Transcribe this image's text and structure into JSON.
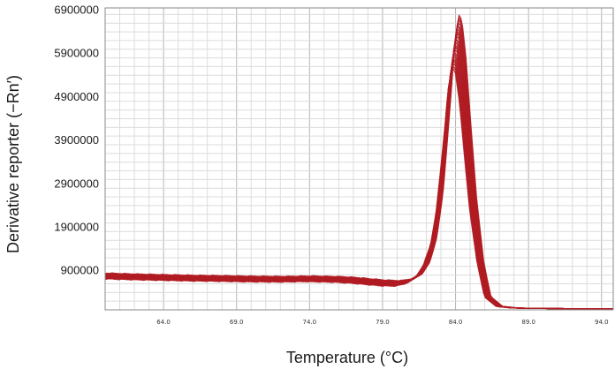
{
  "chart_data": {
    "type": "line",
    "title": "",
    "xlabel": "Temperature (°C)",
    "ylabel": "Derivative reporter (−Rn′)",
    "xlim": [
      60.0,
      94.8
    ],
    "ylim": [
      0,
      6950000
    ],
    "x_ticks": [
      "64.0",
      "69.0",
      "74.0",
      "79.0",
      "84.0",
      "89.0",
      "94.0"
    ],
    "y_ticks": [
      "900000",
      "1900000",
      "2900000",
      "3900000",
      "4900000",
      "5900000",
      "6900000"
    ],
    "grid": true,
    "legend": "none",
    "series_color": "#b01c22",
    "replicate_count": 24,
    "series": [
      {
        "x": [
          60.0,
          62.0,
          64.0,
          66.0,
          68.0,
          70.0,
          72.0,
          74.0,
          76.0,
          77.0,
          78.0,
          79.0,
          80.0,
          80.8,
          81.5,
          82.0,
          82.5,
          82.9,
          83.2,
          83.5,
          83.7,
          84.0,
          84.2,
          84.5,
          84.8,
          85.2,
          85.7,
          86.2,
          87.0,
          88.0,
          89.0,
          91.0,
          93.0,
          94.8
        ],
        "values": [
          780000,
          760000,
          745000,
          730000,
          722000,
          710000,
          705000,
          715000,
          700000,
          680000,
          650000,
          620000,
          610000,
          660000,
          800000,
          1050000,
          1600000,
          2500000,
          3600000,
          4800000,
          5700000,
          6350000,
          6250000,
          5400000,
          4100000,
          2500000,
          1100000,
          300000,
          80000,
          45000,
          35000,
          30000,
          25000,
          20000
        ]
      }
    ]
  }
}
